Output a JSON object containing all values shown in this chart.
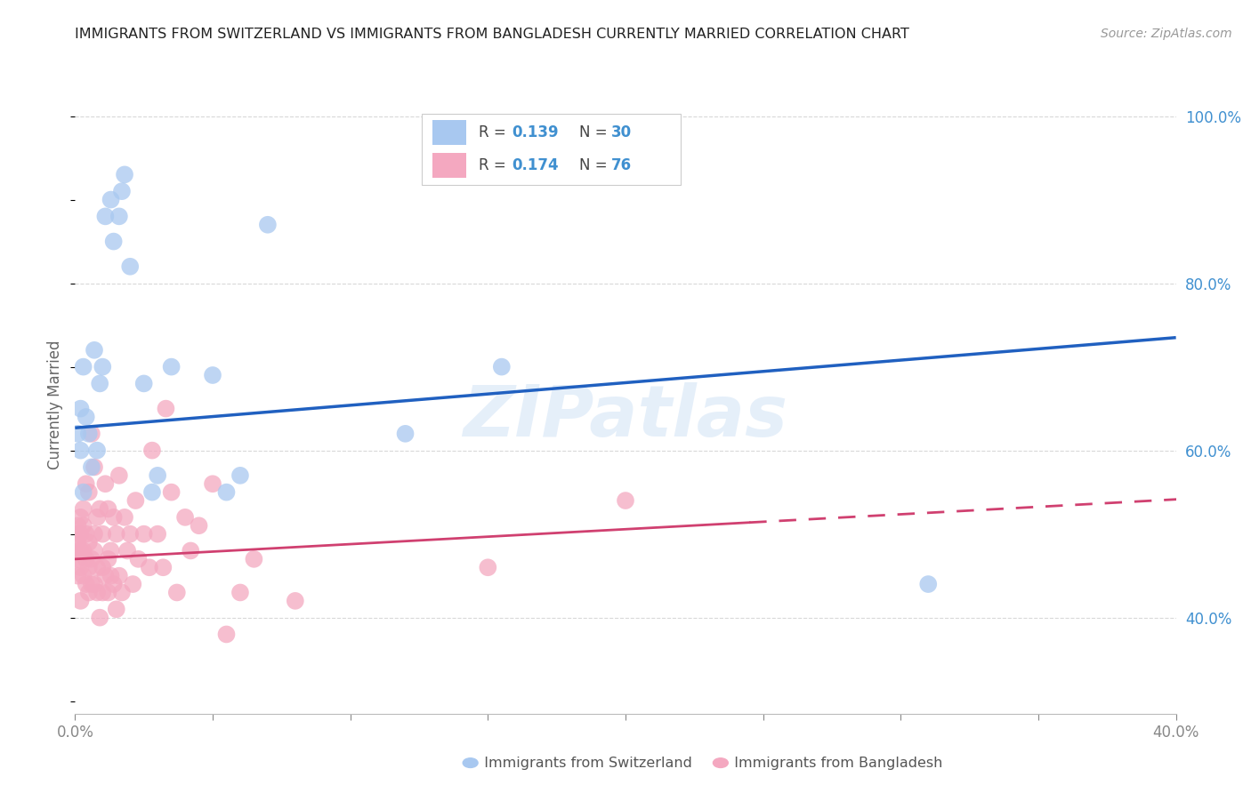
{
  "title": "IMMIGRANTS FROM SWITZERLAND VS IMMIGRANTS FROM BANGLADESH CURRENTLY MARRIED CORRELATION CHART",
  "source": "Source: ZipAtlas.com",
  "ylabel": "Currently Married",
  "xmin": 0.0,
  "xmax": 0.4,
  "ymin": 0.285,
  "ymax": 1.025,
  "switzerland_color": "#a8c8f0",
  "bangladesh_color": "#f4a8c0",
  "line_ch_color": "#2060c0",
  "line_bd_color": "#d04070",
  "watermark": "ZIPatlas",
  "grid_color": "#d8d8d8",
  "background_color": "#ffffff",
  "tick_color_right": "#4090d0",
  "axis_label_color": "#666666",
  "legend_box_color": "#f0f0f0",
  "legend_box_edge": "#cccccc",
  "ch_line_y0": 0.627,
  "ch_line_y1": 0.735,
  "bd_line_y0": 0.47,
  "bd_line_y1": 0.545,
  "bd_solid_xend": 0.245,
  "bd_dash_xend": 0.42,
  "switzerland_x": [
    0.001,
    0.002,
    0.002,
    0.003,
    0.003,
    0.004,
    0.005,
    0.006,
    0.007,
    0.008,
    0.009,
    0.01,
    0.011,
    0.013,
    0.014,
    0.016,
    0.017,
    0.018,
    0.02,
    0.025,
    0.028,
    0.03,
    0.035,
    0.05,
    0.055,
    0.06,
    0.07,
    0.12,
    0.155,
    0.31
  ],
  "switzerland_y": [
    0.62,
    0.6,
    0.65,
    0.55,
    0.7,
    0.64,
    0.62,
    0.58,
    0.72,
    0.6,
    0.68,
    0.7,
    0.88,
    0.9,
    0.85,
    0.88,
    0.91,
    0.93,
    0.82,
    0.68,
    0.55,
    0.57,
    0.7,
    0.69,
    0.55,
    0.57,
    0.87,
    0.62,
    0.7,
    0.44
  ],
  "bangladesh_x": [
    0.001,
    0.001,
    0.001,
    0.001,
    0.001,
    0.001,
    0.002,
    0.002,
    0.002,
    0.002,
    0.002,
    0.003,
    0.003,
    0.003,
    0.003,
    0.004,
    0.004,
    0.004,
    0.004,
    0.005,
    0.005,
    0.005,
    0.005,
    0.006,
    0.006,
    0.006,
    0.007,
    0.007,
    0.007,
    0.007,
    0.008,
    0.008,
    0.008,
    0.009,
    0.009,
    0.01,
    0.01,
    0.01,
    0.011,
    0.011,
    0.012,
    0.012,
    0.012,
    0.013,
    0.013,
    0.014,
    0.014,
    0.015,
    0.015,
    0.016,
    0.016,
    0.017,
    0.018,
    0.019,
    0.02,
    0.021,
    0.022,
    0.023,
    0.025,
    0.027,
    0.028,
    0.03,
    0.032,
    0.033,
    0.035,
    0.037,
    0.04,
    0.042,
    0.045,
    0.05,
    0.055,
    0.06,
    0.065,
    0.08,
    0.15,
    0.2
  ],
  "bangladesh_y": [
    0.47,
    0.48,
    0.49,
    0.5,
    0.51,
    0.45,
    0.46,
    0.48,
    0.5,
    0.52,
    0.42,
    0.45,
    0.48,
    0.51,
    0.53,
    0.44,
    0.47,
    0.5,
    0.56,
    0.43,
    0.46,
    0.49,
    0.55,
    0.44,
    0.47,
    0.62,
    0.44,
    0.48,
    0.5,
    0.58,
    0.43,
    0.46,
    0.52,
    0.4,
    0.53,
    0.43,
    0.46,
    0.5,
    0.45,
    0.56,
    0.43,
    0.47,
    0.53,
    0.45,
    0.48,
    0.44,
    0.52,
    0.41,
    0.5,
    0.45,
    0.57,
    0.43,
    0.52,
    0.48,
    0.5,
    0.44,
    0.54,
    0.47,
    0.5,
    0.46,
    0.6,
    0.5,
    0.46,
    0.65,
    0.55,
    0.43,
    0.52,
    0.48,
    0.51,
    0.56,
    0.38,
    0.43,
    0.47,
    0.42,
    0.46,
    0.54
  ]
}
